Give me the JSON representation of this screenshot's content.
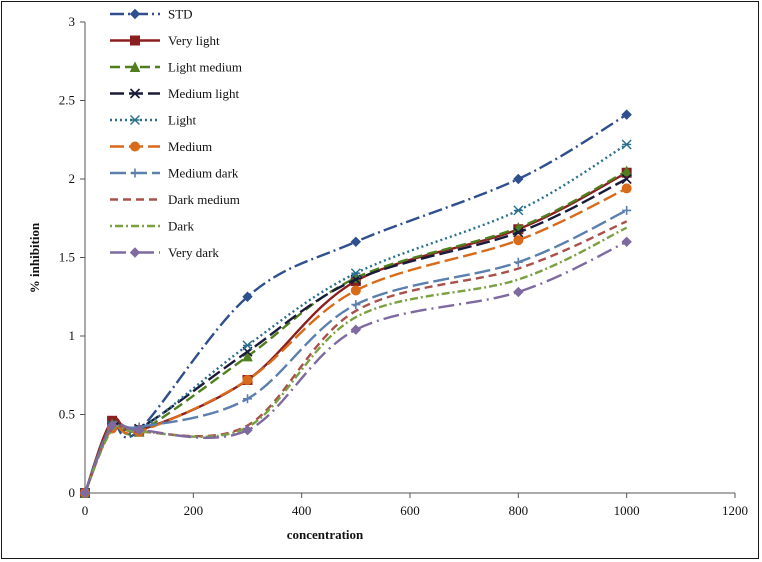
{
  "chart_data": {
    "type": "line",
    "title": "",
    "xlabel": "concentration",
    "ylabel": "% inhibition",
    "xlim": [
      0,
      1200
    ],
    "ylim": [
      0,
      3
    ],
    "xticks": [
      0,
      200,
      400,
      600,
      800,
      1000,
      1200
    ],
    "yticks": [
      0,
      0.5,
      1,
      1.5,
      2,
      2.5,
      3
    ],
    "grid": false,
    "legend_position": "top-left",
    "x": [
      0,
      50,
      100,
      300,
      500,
      800,
      1000
    ],
    "series": [
      {
        "name": "STD",
        "color": "#2f4f8f",
        "dash": "14 4 2 4",
        "marker": "diamond",
        "values": [
          0,
          0.42,
          0.4,
          1.25,
          1.6,
          2.0,
          2.41
        ]
      },
      {
        "name": "Very light",
        "color": "#8b1f1f",
        "dash": "",
        "marker": "square",
        "values": [
          0,
          0.46,
          0.4,
          0.72,
          1.35,
          1.68,
          2.04
        ]
      },
      {
        "name": "Light medium",
        "color": "#4f7f1f",
        "dash": "10 5",
        "marker": "triangle",
        "values": [
          0,
          0.44,
          0.39,
          0.87,
          1.37,
          1.69,
          2.05
        ]
      },
      {
        "name": "Medium light",
        "color": "#1a1a3a",
        "dash": "14 5",
        "marker": "x",
        "values": [
          0,
          0.43,
          0.41,
          0.9,
          1.36,
          1.66,
          2.0
        ]
      },
      {
        "name": "Light",
        "color": "#2a6f8f",
        "dash": "2 3",
        "marker": "star",
        "values": [
          0,
          0.43,
          0.4,
          0.94,
          1.4,
          1.8,
          2.22
        ]
      },
      {
        "name": "Medium",
        "color": "#d86a1a",
        "dash": "14 5",
        "marker": "circle",
        "values": [
          0,
          0.41,
          0.39,
          0.72,
          1.29,
          1.61,
          1.94
        ]
      },
      {
        "name": "Medium dark",
        "color": "#5b7fae",
        "dash": "16 5",
        "marker": "plus",
        "values": [
          0,
          0.43,
          0.42,
          0.6,
          1.2,
          1.47,
          1.8
        ]
      },
      {
        "name": "Dark medium",
        "color": "#a8504a",
        "dash": "8 5",
        "marker": "none",
        "values": [
          0,
          0.41,
          0.39,
          0.43,
          1.16,
          1.43,
          1.73
        ]
      },
      {
        "name": "Dark",
        "color": "#7aa040",
        "dash": "2 3 8 3",
        "marker": "none",
        "values": [
          0,
          0.4,
          0.39,
          0.42,
          1.12,
          1.36,
          1.69
        ]
      },
      {
        "name": "Very dark",
        "color": "#7e6aa0",
        "dash": "16 5 2 5",
        "marker": "diamond",
        "values": [
          0,
          0.43,
          0.4,
          0.4,
          1.04,
          1.28,
          1.6
        ]
      }
    ]
  }
}
